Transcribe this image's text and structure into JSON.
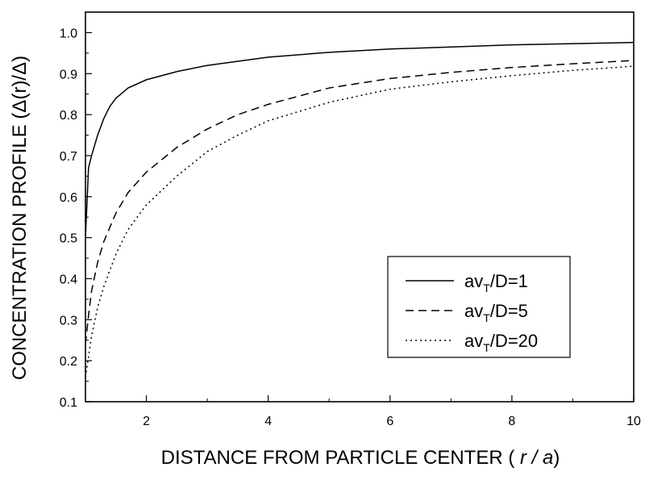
{
  "chart_data": {
    "type": "line",
    "xlabel": "DISTANCE  FROM PARTICLE CENTER ( ",
    "xlabel_italic": "r / a",
    "xlabel_end": ")",
    "ylabel": "CONCENTRATION  PROFILE  (Δ(r)/Δ)",
    "xlim": [
      1,
      10
    ],
    "ylim": [
      0.1,
      1.05
    ],
    "xticks": [
      2,
      4,
      6,
      8,
      10
    ],
    "xtick_labels": [
      "2",
      "4",
      "6",
      "8",
      "10"
    ],
    "yticks": [
      0.1,
      0.2,
      0.3,
      0.4,
      0.5,
      0.6,
      0.7,
      0.8,
      0.9,
      1.0
    ],
    "ytick_labels": [
      "0.1",
      "0.2",
      "0.3",
      "0.4",
      "0.5",
      "0.6",
      "0.7",
      "0.8",
      "0.9",
      "1.0"
    ],
    "grid": false,
    "legend_position": "lower-right",
    "series": [
      {
        "name_prefix": "av",
        "name_sub": "T",
        "name_suffix": "/D=1",
        "style": "solid",
        "x": [
          1.0,
          1.05,
          1.1,
          1.2,
          1.3,
          1.4,
          1.5,
          1.7,
          2.0,
          2.5,
          3.0,
          4.0,
          5.0,
          6.0,
          7.0,
          8.0,
          9.0,
          10.0
        ],
        "y": [
          0.5,
          0.67,
          0.7,
          0.75,
          0.79,
          0.82,
          0.84,
          0.865,
          0.885,
          0.905,
          0.92,
          0.94,
          0.952,
          0.96,
          0.965,
          0.97,
          0.973,
          0.976
        ]
      },
      {
        "name_prefix": "av",
        "name_sub": "T",
        "name_suffix": "/D=5",
        "style": "dashed",
        "x": [
          1.0,
          1.05,
          1.1,
          1.2,
          1.3,
          1.5,
          1.7,
          2.0,
          2.5,
          3.0,
          3.5,
          4.0,
          5.0,
          6.0,
          7.0,
          8.0,
          9.0,
          10.0
        ],
        "y": [
          0.24,
          0.31,
          0.37,
          0.44,
          0.49,
          0.56,
          0.61,
          0.66,
          0.72,
          0.765,
          0.8,
          0.825,
          0.865,
          0.888,
          0.903,
          0.915,
          0.924,
          0.932
        ]
      },
      {
        "name_prefix": "av",
        "name_sub": "T",
        "name_suffix": "/D=20",
        "style": "dotted",
        "x": [
          1.0,
          1.05,
          1.1,
          1.2,
          1.3,
          1.5,
          1.7,
          2.0,
          2.5,
          3.0,
          3.5,
          4.0,
          5.0,
          6.0,
          7.0,
          8.0,
          9.0,
          10.0
        ],
        "y": [
          0.16,
          0.21,
          0.26,
          0.33,
          0.38,
          0.46,
          0.52,
          0.58,
          0.65,
          0.71,
          0.75,
          0.785,
          0.83,
          0.862,
          0.88,
          0.895,
          0.908,
          0.918
        ]
      }
    ]
  }
}
